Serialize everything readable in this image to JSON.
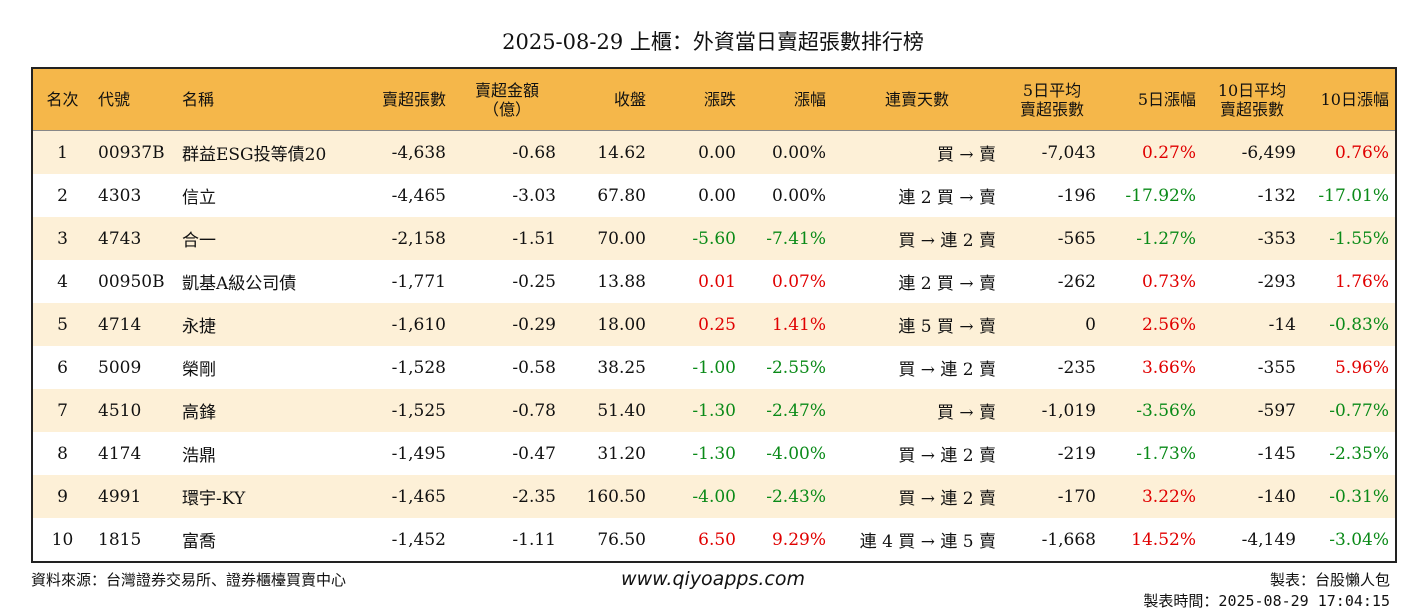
{
  "title": "2025-08-29 上櫃：外資當日賣超張數排行榜",
  "colors": {
    "header_bg": "#f5b74a",
    "row_alt_bg": "#fdf0d7",
    "up": "#e00000",
    "down": "#0a8a18"
  },
  "headers": [
    "名次",
    "代號",
    "名稱",
    "賣超張數",
    "賣超金額（億）",
    "收盤",
    "漲跌",
    "漲幅",
    "連賣天數",
    "5日平均賣超張數",
    "5日漲幅",
    "10日平均賣超張數",
    "10日漲幅"
  ],
  "rows": [
    {
      "rank": "1",
      "code": "00937B",
      "name": "群益ESG投等債20",
      "net_sell": "-4,638",
      "amount": "-0.68",
      "close": "14.62",
      "change": "0.00",
      "pct": "0.00%",
      "streak": "買 → 賣",
      "avg5": "-7,043",
      "pct5": "0.27%",
      "avg10": "-6,499",
      "pct10": "0.76%"
    },
    {
      "rank": "2",
      "code": "4303",
      "name": "信立",
      "net_sell": "-4,465",
      "amount": "-3.03",
      "close": "67.80",
      "change": "0.00",
      "pct": "0.00%",
      "streak": "連 2 買 → 賣",
      "avg5": "-196",
      "pct5": "-17.92%",
      "avg10": "-132",
      "pct10": "-17.01%"
    },
    {
      "rank": "3",
      "code": "4743",
      "name": "合一",
      "net_sell": "-2,158",
      "amount": "-1.51",
      "close": "70.00",
      "change": "-5.60",
      "pct": "-7.41%",
      "streak": "買 → 連 2 賣",
      "avg5": "-565",
      "pct5": "-1.27%",
      "avg10": "-353",
      "pct10": "-1.55%"
    },
    {
      "rank": "4",
      "code": "00950B",
      "name": "凱基A級公司債",
      "net_sell": "-1,771",
      "amount": "-0.25",
      "close": "13.88",
      "change": "0.01",
      "pct": "0.07%",
      "streak": "連 2 買 → 賣",
      "avg5": "-262",
      "pct5": "0.73%",
      "avg10": "-293",
      "pct10": "1.76%"
    },
    {
      "rank": "5",
      "code": "4714",
      "name": "永捷",
      "net_sell": "-1,610",
      "amount": "-0.29",
      "close": "18.00",
      "change": "0.25",
      "pct": "1.41%",
      "streak": "連 5 買 → 賣",
      "avg5": "0",
      "pct5": "2.56%",
      "avg10": "-14",
      "pct10": "-0.83%"
    },
    {
      "rank": "6",
      "code": "5009",
      "name": "榮剛",
      "net_sell": "-1,528",
      "amount": "-0.58",
      "close": "38.25",
      "change": "-1.00",
      "pct": "-2.55%",
      "streak": "買 → 連 2 賣",
      "avg5": "-235",
      "pct5": "3.66%",
      "avg10": "-355",
      "pct10": "5.96%"
    },
    {
      "rank": "7",
      "code": "4510",
      "name": "高鋒",
      "net_sell": "-1,525",
      "amount": "-0.78",
      "close": "51.40",
      "change": "-1.30",
      "pct": "-2.47%",
      "streak": "買 → 賣",
      "avg5": "-1,019",
      "pct5": "-3.56%",
      "avg10": "-597",
      "pct10": "-0.77%"
    },
    {
      "rank": "8",
      "code": "4174",
      "name": "浩鼎",
      "net_sell": "-1,495",
      "amount": "-0.47",
      "close": "31.20",
      "change": "-1.30",
      "pct": "-4.00%",
      "streak": "買 → 連 2 賣",
      "avg5": "-219",
      "pct5": "-1.73%",
      "avg10": "-145",
      "pct10": "-2.35%"
    },
    {
      "rank": "9",
      "code": "4991",
      "name": "環宇-KY",
      "net_sell": "-1,465",
      "amount": "-2.35",
      "close": "160.50",
      "change": "-4.00",
      "pct": "-2.43%",
      "streak": "買 → 連 2 賣",
      "avg5": "-170",
      "pct5": "3.22%",
      "avg10": "-140",
      "pct10": "-0.31%"
    },
    {
      "rank": "10",
      "code": "1815",
      "name": "富喬",
      "net_sell": "-1,452",
      "amount": "-1.11",
      "close": "76.50",
      "change": "6.50",
      "pct": "9.29%",
      "streak": "連 4 買 → 連 5 賣",
      "avg5": "-1,668",
      "pct5": "14.52%",
      "avg10": "-4,149",
      "pct10": "-3.04%"
    }
  ],
  "footer": {
    "source": "資料來源：台灣證券交易所、證券櫃檯買賣中心",
    "url": "www.qiyoapps.com",
    "maker": "製表：台股懶人包",
    "timestamp": "製表時間：2025-08-29 17:04:15"
  }
}
